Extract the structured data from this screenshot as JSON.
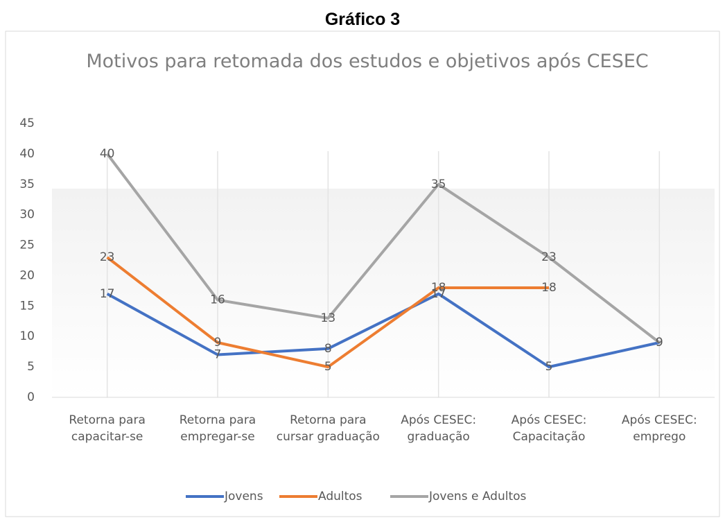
{
  "heading": "Gráfico 3",
  "chart_data": {
    "type": "line",
    "title": "Motivos para retomada dos estudos e objetivos após CESEC",
    "categories": [
      "Retorna para capacitar-se",
      "Retorna para empregar-se",
      "Retorna para cursar graduação",
      "Após CESEC: graduação",
      "Após CESEC: Capacitação",
      "Após CESEC: emprego"
    ],
    "series": [
      {
        "name": "Jovens",
        "color": "#4472c4",
        "values": [
          17,
          7,
          8,
          17,
          5,
          9
        ]
      },
      {
        "name": "Adultos",
        "color": "#ed7d31",
        "values": [
          23,
          9,
          5,
          18,
          18,
          null
        ]
      },
      {
        "name": "Jovens e Adultos",
        "color": "#a5a5a5",
        "values": [
          40,
          16,
          13,
          35,
          23,
          9
        ]
      }
    ],
    "ylim": [
      0,
      45
    ],
    "yticks": [
      0,
      5,
      10,
      15,
      20,
      25,
      30,
      35,
      40,
      45
    ],
    "legend": "bottom"
  }
}
